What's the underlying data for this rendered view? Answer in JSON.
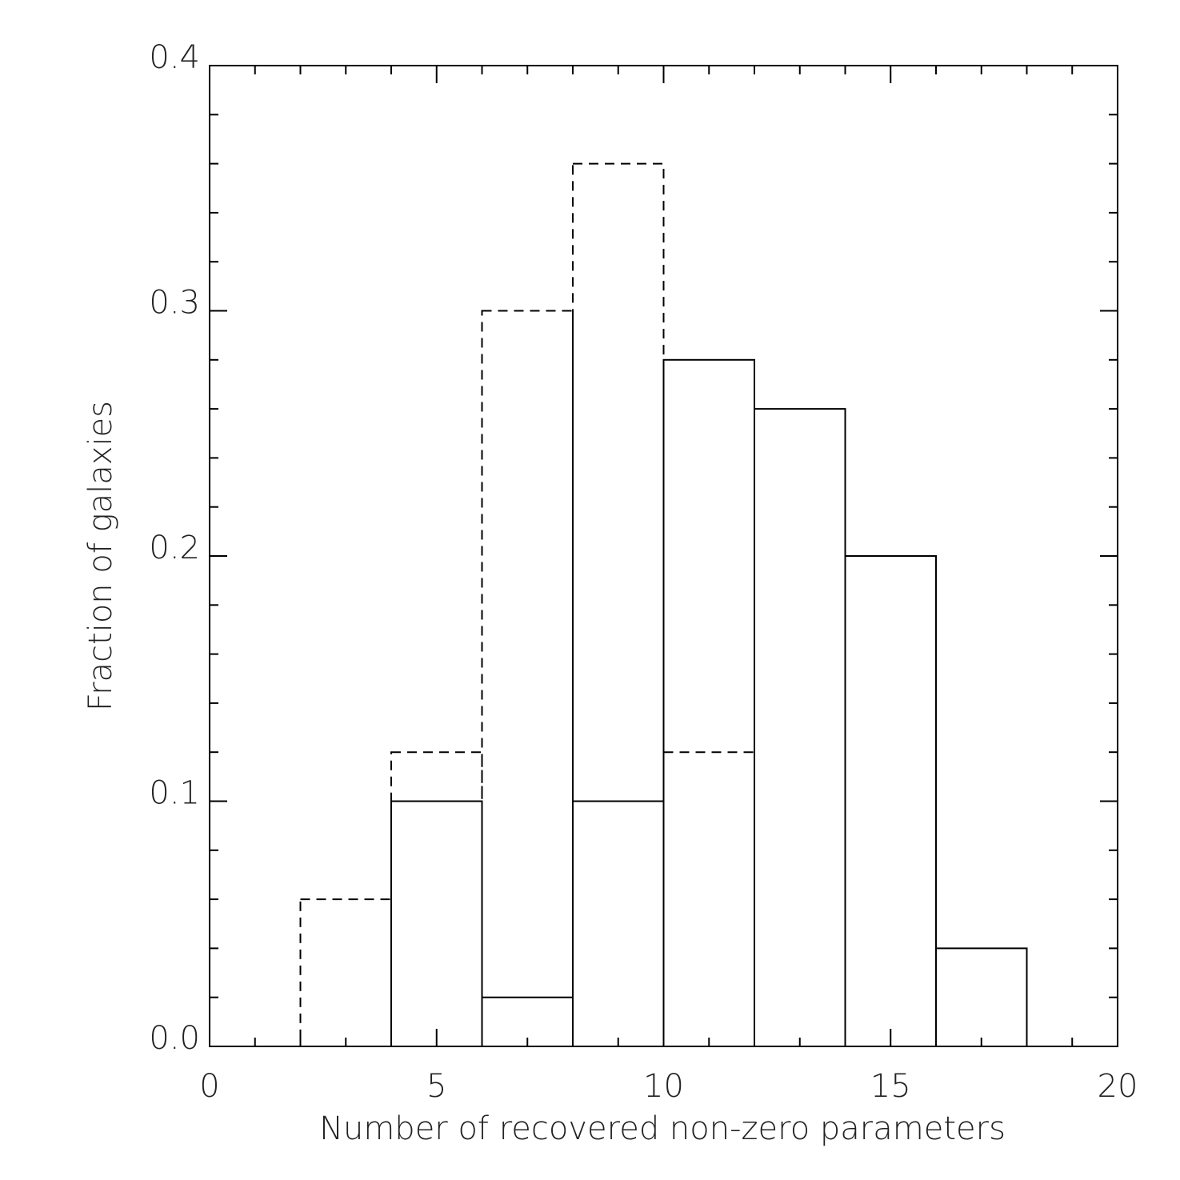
{
  "chart_data": {
    "type": "histogram",
    "xlabel": "Number of recovered non-zero parameters",
    "ylabel": "Fraction of galaxies",
    "bins": [
      2,
      4,
      6,
      8,
      10,
      12,
      14,
      16,
      18
    ],
    "series": [
      {
        "color": "#000000",
        "dash": true,
        "values": [
          0.06,
          0.12,
          0.3,
          0.36,
          0.12,
          0,
          0,
          0
        ]
      },
      {
        "color": "#000000",
        "dash": false,
        "values": [
          0,
          0.1,
          0.02,
          0.1,
          0.28,
          0.26,
          0.2,
          0.04
        ]
      }
    ],
    "xlim": [
      0,
      20
    ],
    "xticks": [
      0,
      5,
      10,
      15,
      20
    ],
    "ylim": [
      0,
      0.4
    ],
    "yticks": [
      {
        "value": 0,
        "label": "0.0"
      },
      0.1,
      0.2,
      0.3,
      0.4
    ]
  }
}
